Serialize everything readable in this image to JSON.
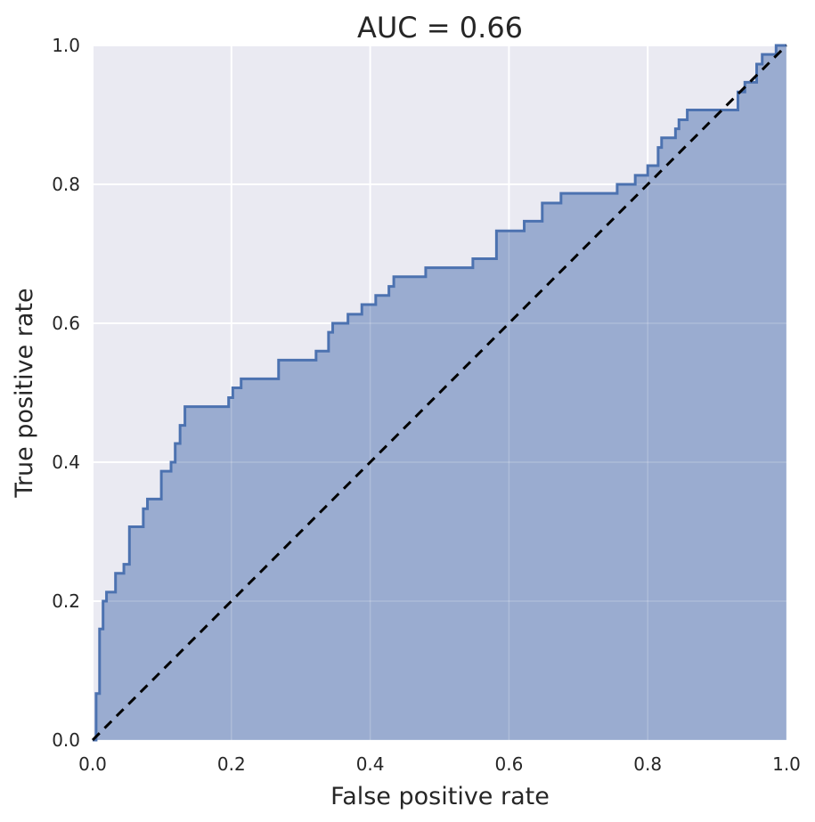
{
  "chart_data": {
    "type": "area",
    "title": "AUC = 0.66",
    "xlabel": "False positive rate",
    "ylabel": "True positive rate",
    "xlim": [
      0.0,
      1.0
    ],
    "ylim": [
      0.0,
      1.0
    ],
    "x_ticks": [
      "0.0",
      "0.2",
      "0.4",
      "0.6",
      "0.8",
      "1.0"
    ],
    "y_ticks": [
      "0.0",
      "0.2",
      "0.4",
      "0.6",
      "0.8",
      "1.0"
    ],
    "grid": true,
    "colors": {
      "background": "#EAEAF2",
      "grid": "#FFFFFF",
      "line": "#4C72B0",
      "fill": "#9AACD0",
      "diagonal": "#000000"
    },
    "series": [
      {
        "step": "post",
        "x": [
          0.0,
          0.005,
          0.005,
          0.01,
          0.01,
          0.015,
          0.015,
          0.02,
          0.02,
          0.033,
          0.033,
          0.045,
          0.045,
          0.053,
          0.053,
          0.073,
          0.073,
          0.079,
          0.079,
          0.099,
          0.099,
          0.113,
          0.113,
          0.119,
          0.119,
          0.126,
          0.126,
          0.133,
          0.133,
          0.196,
          0.196,
          0.202,
          0.202,
          0.214,
          0.214,
          0.268,
          0.268,
          0.322,
          0.322,
          0.34,
          0.34,
          0.346,
          0.346,
          0.368,
          0.368,
          0.388,
          0.388,
          0.408,
          0.408,
          0.427,
          0.427,
          0.434,
          0.434,
          0.48,
          0.48,
          0.548,
          0.548,
          0.582,
          0.582,
          0.622,
          0.622,
          0.648,
          0.648,
          0.675,
          0.675,
          0.756,
          0.756,
          0.782,
          0.782,
          0.8,
          0.8,
          0.815,
          0.815,
          0.82,
          0.82,
          0.84,
          0.84,
          0.845,
          0.845,
          0.857,
          0.857,
          0.93,
          0.93,
          0.94,
          0.94,
          0.957,
          0.957,
          0.965,
          0.965,
          0.985,
          0.985,
          0.997,
          1.0
        ],
        "y": [
          0.0,
          0.0,
          0.067,
          0.067,
          0.16,
          0.16,
          0.2,
          0.2,
          0.213,
          0.213,
          0.24,
          0.24,
          0.253,
          0.253,
          0.307,
          0.307,
          0.333,
          0.333,
          0.347,
          0.347,
          0.387,
          0.387,
          0.4,
          0.4,
          0.427,
          0.427,
          0.453,
          0.453,
          0.48,
          0.48,
          0.493,
          0.493,
          0.507,
          0.507,
          0.52,
          0.52,
          0.547,
          0.547,
          0.56,
          0.56,
          0.587,
          0.587,
          0.6,
          0.6,
          0.613,
          0.613,
          0.627,
          0.627,
          0.64,
          0.64,
          0.653,
          0.653,
          0.667,
          0.667,
          0.68,
          0.68,
          0.693,
          0.693,
          0.733,
          0.733,
          0.747,
          0.747,
          0.773,
          0.773,
          0.787,
          0.787,
          0.8,
          0.8,
          0.813,
          0.813,
          0.827,
          0.827,
          0.853,
          0.853,
          0.867,
          0.867,
          0.88,
          0.88,
          0.893,
          0.893,
          0.907,
          0.907,
          0.933,
          0.933,
          0.947,
          0.947,
          0.973,
          0.973,
          0.987,
          0.987,
          1.0,
          1.0,
          1.0
        ]
      }
    ],
    "reference_line": {
      "x": [
        0.0,
        1.0
      ],
      "y": [
        0.0,
        1.0
      ],
      "style": "dashed"
    }
  }
}
